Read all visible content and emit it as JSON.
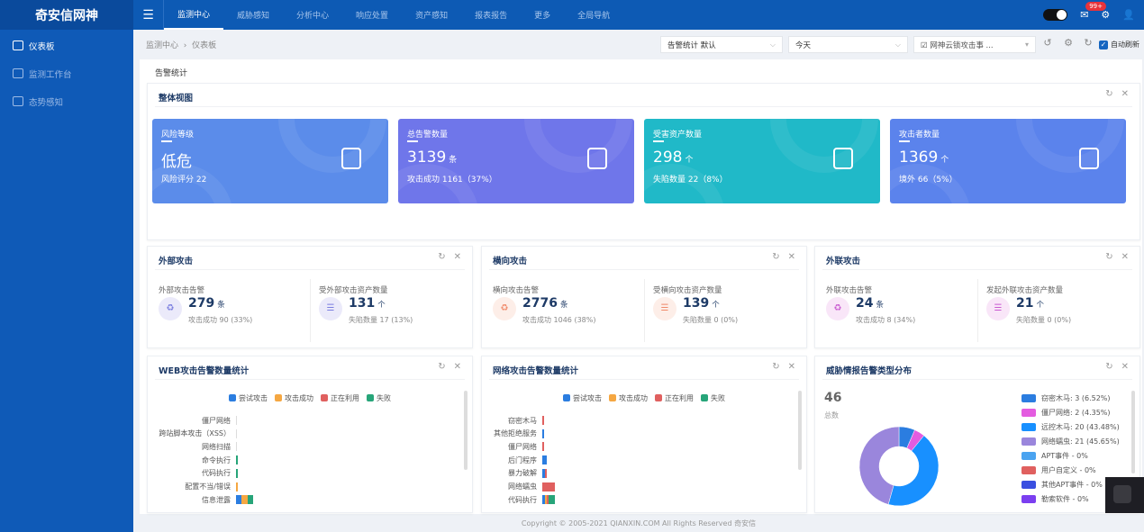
{
  "app": {
    "title": "奇安信网神"
  },
  "nav": {
    "items": [
      "监测中心",
      "威胁感知",
      "分析中心",
      "响应处置",
      "资产感知",
      "报表报告",
      "更多",
      "全局导航"
    ],
    "active": 0,
    "badge": "99+"
  },
  "sidebar": {
    "items": [
      "仪表板",
      "监测工作台",
      "态势感知"
    ]
  },
  "breadcrumb": {
    "parent": "监测中心",
    "current": "仪表板"
  },
  "toolbar": {
    "template_select": "告警统计 默认",
    "time_select": "今天",
    "source_select": "网神云锁攻击事 ...",
    "auto_refresh_label": "自动刷新",
    "auto_refresh": true
  },
  "panel": {
    "title": "告警统计"
  },
  "overview": {
    "title": "整体视图",
    "cards": [
      {
        "label": "风险等级",
        "value": "低危",
        "unit": "",
        "sub": "风险评分 22",
        "color": "#5b8cea",
        "icon": "report-icon"
      },
      {
        "label": "总告警数量",
        "value": "3139",
        "unit": "条",
        "sub": "攻击成功 1161（37%）",
        "color": "#6f76ea",
        "icon": "recycle-icon"
      },
      {
        "label": "受害资产数量",
        "value": "298",
        "unit": "个",
        "sub": "失陷数量 22（8%）",
        "color": "#20b9c8",
        "icon": "server-icon"
      },
      {
        "label": "攻击者数量",
        "value": "1369",
        "unit": "个",
        "sub": "境外 66（5%）",
        "color": "#5b83ec",
        "icon": "mask-icon"
      }
    ]
  },
  "attack_cards": [
    {
      "title": "外部攻击",
      "left": {
        "label": "外部攻击告警",
        "value": "279",
        "unit": "条",
        "sub": "攻击成功 90  (33%)"
      },
      "right": {
        "label": "受外部攻击资产数量",
        "value": "131",
        "unit": "个",
        "sub": "失陷数量 17  (13%)"
      },
      "tint": "#ebeafa",
      "accent": "#7b7fe0"
    },
    {
      "title": "横向攻击",
      "left": {
        "label": "横向攻击告警",
        "value": "2776",
        "unit": "条",
        "sub": "攻击成功 1046  (38%)"
      },
      "right": {
        "label": "受横向攻击资产数量",
        "value": "139",
        "unit": "个",
        "sub": "失陷数量 0  (0%)"
      },
      "tint": "#fdeee8",
      "accent": "#f08a6a"
    },
    {
      "title": "外联攻击",
      "left": {
        "label": "外联攻击告警",
        "value": "24",
        "unit": "条",
        "sub": "攻击成功 8  (34%)"
      },
      "right": {
        "label": "发起外联攻击资产数量",
        "value": "21",
        "unit": "个",
        "sub": "失陷数量 0  (0%)"
      },
      "tint": "#f9e6f8",
      "accent": "#c95ad0"
    }
  ],
  "chart_data": [
    {
      "type": "bar",
      "orientation": "horizontal",
      "stacked": true,
      "title": "WEB攻击告警数量统计",
      "legend_position": "top",
      "categories": [
        "僵尸网络",
        "跨站脚本攻击（XSS）",
        "网络扫描",
        "命令执行",
        "代码执行",
        "配置不当/错误",
        "信息泄露"
      ],
      "series": [
        {
          "name": "尝试攻击",
          "color": "#2b7de0",
          "values": [
            0,
            0,
            0,
            0,
            0,
            0,
            4
          ]
        },
        {
          "name": "攻击成功",
          "color": "#f5a742",
          "values": [
            0,
            0,
            0,
            0,
            0,
            1,
            4
          ]
        },
        {
          "name": "正在利用",
          "color": "#e0605f",
          "values": [
            0,
            0,
            0,
            0,
            0,
            0,
            0
          ]
        },
        {
          "name": "失败",
          "color": "#27a579",
          "values": [
            0,
            0,
            0,
            1,
            1,
            0,
            4
          ]
        }
      ]
    },
    {
      "type": "bar",
      "orientation": "horizontal",
      "stacked": true,
      "title": "网络攻击告警数量统计",
      "legend_position": "top",
      "categories": [
        "窃密木马",
        "其他拒绝服务",
        "僵尸网络",
        "后门程序",
        "暴力破解",
        "网络蠕虫",
        "代码执行"
      ],
      "series": [
        {
          "name": "尝试攻击",
          "color": "#2b7de0",
          "values": [
            0,
            1,
            0,
            3,
            2,
            0,
            2
          ]
        },
        {
          "name": "攻击成功",
          "color": "#f5a742",
          "values": [
            0,
            0,
            0,
            0,
            0,
            0,
            1
          ]
        },
        {
          "name": "正在利用",
          "color": "#e0605f",
          "values": [
            1,
            0,
            1,
            0,
            1,
            9,
            1
          ]
        },
        {
          "name": "失败",
          "color": "#27a579",
          "values": [
            0,
            0,
            0,
            0,
            0,
            0,
            4
          ]
        }
      ]
    },
    {
      "type": "pie",
      "donut": true,
      "title": "威胁情报告警类型分布",
      "total": "46",
      "total_label": "总数",
      "legend_position": "right",
      "slices": [
        {
          "label": "窃密木马: 3 (6.52%)",
          "value": 3,
          "color": "#2b7de0"
        },
        {
          "label": "僵尸网络: 2 (4.35%)",
          "value": 2,
          "color": "#e45ce0"
        },
        {
          "label": "远控木马: 20 (43.48%)",
          "value": 20,
          "color": "#1890ff"
        },
        {
          "label": "网络蠕虫: 21 (45.65%)",
          "value": 21,
          "color": "#9a86dc"
        },
        {
          "label": "APT事件 - 0%",
          "value": 0,
          "color": "#4aa3f0"
        },
        {
          "label": "用户自定义 - 0%",
          "value": 0,
          "color": "#e0605f"
        },
        {
          "label": "其他APT事件 - 0%",
          "value": 0,
          "color": "#3a4fe0"
        },
        {
          "label": "勒索软件 - 0%",
          "value": 0,
          "color": "#7b3ff0"
        }
      ]
    }
  ],
  "footer": {
    "copyright": "Copyright © 2005-2021 QIANXIN.COM All Rights Reserved 奇安信"
  }
}
